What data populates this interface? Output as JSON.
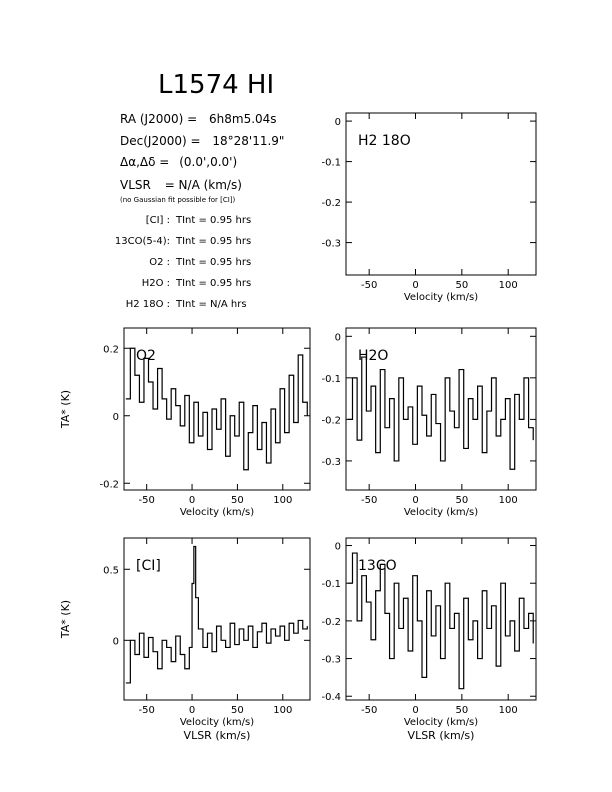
{
  "header": {
    "title": "L1574 HI",
    "ra_label": "RA (J2000) =",
    "ra_value": "6h8m5.04s",
    "dec_label": "Dec(J2000) =",
    "dec_value": "18°28'11.9\"",
    "offset_label": "Δα,Δδ =",
    "offset_value": "(0.0',0.0')",
    "vlsr_label": "VLSR",
    "vlsr_value": "= N/A (km/s)",
    "note": "(no Gaussian fit possible for [CI])",
    "integrations": [
      {
        "line": "[CI] :",
        "value": "TInt = 0.95 hrs"
      },
      {
        "line": "13CO(5-4):",
        "value": "TInt = 0.95 hrs"
      },
      {
        "line": "O2 :",
        "value": "TInt = 0.95 hrs"
      },
      {
        "line": "H2O :",
        "value": "TInt = 0.95 hrs"
      },
      {
        "line": "H2 18O :",
        "value": "TInt = N/A hrs"
      }
    ]
  },
  "axes_text": {
    "xlabel": "Velocity (km/s)",
    "xlabel_bottom": "VLSR (km/s)",
    "ylabel": "TA* (K)"
  },
  "chart_data": [
    {
      "id": "h218o",
      "type": "line",
      "label": "H2 18O",
      "xlim": [
        -75,
        130
      ],
      "ylim": [
        -0.38,
        0.02
      ],
      "xticks": [
        -50,
        0,
        50,
        100
      ],
      "yticks": [
        0,
        -0.1,
        -0.2,
        -0.3
      ],
      "series": []
    },
    {
      "id": "o2",
      "type": "line",
      "label": "O2",
      "xlim": [
        -75,
        130
      ],
      "ylim": [
        -0.22,
        0.26
      ],
      "xticks": [
        -50,
        0,
        50,
        100
      ],
      "yticks": [
        0.2,
        0,
        -0.2
      ],
      "series": [
        {
          "x": [
            -73,
            -68,
            -63,
            -58,
            -53,
            -48,
            -43,
            -38,
            -33,
            -28,
            -23,
            -18,
            -13,
            -8,
            -3,
            2,
            7,
            12,
            17,
            22,
            27,
            32,
            37,
            42,
            47,
            52,
            57,
            62,
            67,
            72,
            77,
            82,
            87,
            92,
            97,
            102,
            107,
            112,
            117,
            122,
            127
          ],
          "y": [
            0.05,
            0.2,
            0.12,
            0.04,
            0.17,
            0.1,
            0.02,
            0.14,
            0.05,
            -0.01,
            0.08,
            0.03,
            -0.03,
            0.06,
            -0.08,
            0.04,
            -0.06,
            0.01,
            -0.1,
            0.02,
            -0.04,
            0.05,
            -0.12,
            0.0,
            -0.06,
            0.04,
            -0.16,
            -0.05,
            0.03,
            -0.1,
            -0.02,
            -0.14,
            0.02,
            -0.08,
            0.08,
            -0.05,
            0.12,
            -0.02,
            0.18,
            0.04,
            0.0
          ]
        }
      ]
    },
    {
      "id": "h2o",
      "type": "line",
      "label": "H2O",
      "xlim": [
        -75,
        130
      ],
      "ylim": [
        -0.37,
        0.02
      ],
      "xticks": [
        -50,
        0,
        50,
        100
      ],
      "yticks": [
        0,
        -0.1,
        -0.2,
        -0.3
      ],
      "series": [
        {
          "x": [
            -73,
            -68,
            -63,
            -58,
            -53,
            -48,
            -43,
            -38,
            -33,
            -28,
            -23,
            -18,
            -13,
            -8,
            -3,
            2,
            7,
            12,
            17,
            22,
            27,
            32,
            37,
            42,
            47,
            52,
            57,
            62,
            67,
            72,
            77,
            82,
            87,
            92,
            97,
            102,
            107,
            112,
            117,
            122,
            127
          ],
          "y": [
            -0.2,
            -0.1,
            -0.25,
            -0.05,
            -0.18,
            -0.12,
            -0.28,
            -0.08,
            -0.22,
            -0.15,
            -0.3,
            -0.1,
            -0.2,
            -0.17,
            -0.26,
            -0.12,
            -0.19,
            -0.24,
            -0.14,
            -0.21,
            -0.3,
            -0.1,
            -0.18,
            -0.22,
            -0.08,
            -0.27,
            -0.15,
            -0.2,
            -0.12,
            -0.28,
            -0.18,
            -0.1,
            -0.24,
            -0.2,
            -0.15,
            -0.32,
            -0.14,
            -0.2,
            -0.1,
            -0.22,
            -0.25
          ]
        }
      ]
    },
    {
      "id": "ci",
      "type": "line",
      "label": "[CI]",
      "xlim": [
        -75,
        130
      ],
      "ylim": [
        -0.42,
        0.72
      ],
      "xticks": [
        -50,
        0,
        50,
        100
      ],
      "yticks": [
        0.5,
        0
      ],
      "series": [
        {
          "x": [
            -73,
            -68,
            -63,
            -58,
            -53,
            -48,
            -43,
            -38,
            -33,
            -28,
            -23,
            -18,
            -13,
            -8,
            -3,
            0,
            2,
            4,
            7,
            12,
            17,
            22,
            27,
            32,
            37,
            42,
            47,
            52,
            57,
            62,
            67,
            72,
            77,
            82,
            87,
            92,
            97,
            102,
            107,
            112,
            117,
            122,
            127
          ],
          "y": [
            -0.3,
            0.0,
            -0.1,
            0.05,
            -0.12,
            0.02,
            -0.08,
            -0.2,
            0.0,
            -0.05,
            -0.15,
            0.03,
            -0.1,
            -0.2,
            -0.05,
            0.4,
            0.66,
            0.3,
            0.08,
            -0.05,
            0.05,
            -0.08,
            0.1,
            0.0,
            -0.05,
            0.12,
            -0.03,
            0.08,
            0.0,
            0.1,
            -0.05,
            0.06,
            0.12,
            -0.02,
            0.08,
            0.03,
            0.1,
            0.0,
            0.12,
            0.05,
            0.14,
            0.08,
            0.1
          ]
        }
      ]
    },
    {
      "id": "13co",
      "type": "line",
      "label": "13CO",
      "xlim": [
        -75,
        130
      ],
      "ylim": [
        -0.41,
        0.02
      ],
      "xticks": [
        -50,
        0,
        50,
        100
      ],
      "yticks": [
        0,
        -0.1,
        -0.2,
        -0.3,
        -0.4
      ],
      "series": [
        {
          "x": [
            -73,
            -68,
            -63,
            -58,
            -53,
            -48,
            -43,
            -38,
            -33,
            -28,
            -23,
            -18,
            -13,
            -8,
            -3,
            2,
            7,
            12,
            17,
            22,
            27,
            32,
            37,
            42,
            47,
            52,
            57,
            62,
            67,
            72,
            77,
            82,
            87,
            92,
            97,
            102,
            107,
            112,
            117,
            122,
            127
          ],
          "y": [
            -0.1,
            -0.02,
            -0.2,
            -0.08,
            -0.15,
            -0.25,
            -0.12,
            -0.05,
            -0.18,
            -0.3,
            -0.1,
            -0.22,
            -0.14,
            -0.28,
            -0.08,
            -0.2,
            -0.35,
            -0.12,
            -0.24,
            -0.16,
            -0.3,
            -0.1,
            -0.22,
            -0.18,
            -0.38,
            -0.14,
            -0.25,
            -0.2,
            -0.3,
            -0.12,
            -0.22,
            -0.16,
            -0.32,
            -0.1,
            -0.24,
            -0.2,
            -0.28,
            -0.14,
            -0.22,
            -0.18,
            -0.26
          ]
        }
      ]
    }
  ]
}
